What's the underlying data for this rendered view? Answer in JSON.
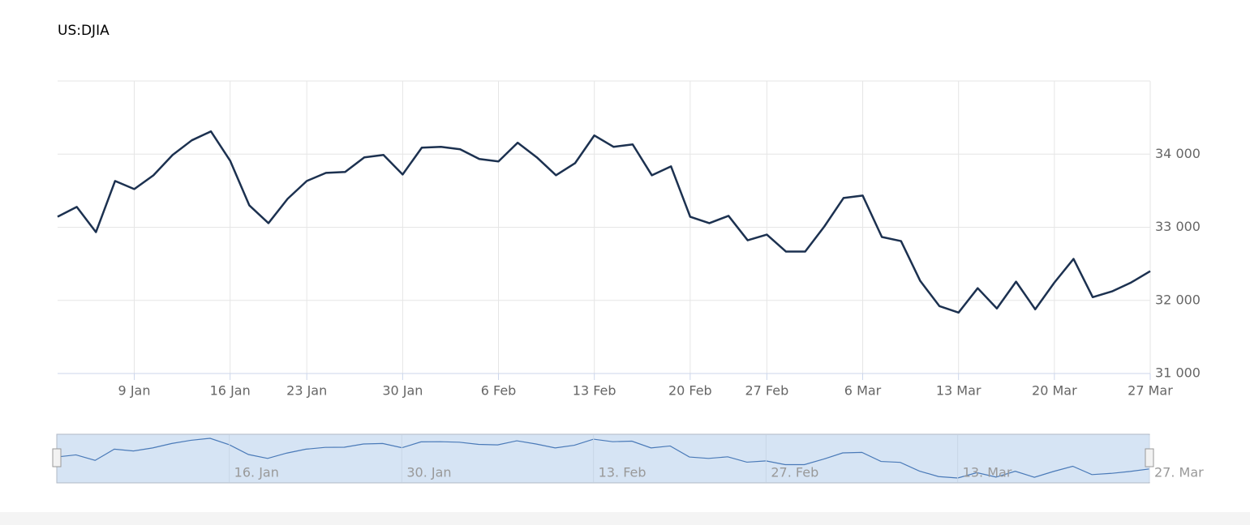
{
  "chart_data": {
    "type": "line",
    "title": "US:DJIA",
    "categories": [
      "",
      "",
      "",
      "",
      "9 Jan",
      "",
      "",
      "",
      "",
      "16 Jan",
      "",
      "",
      "",
      "23 Jan",
      "",
      "",
      "",
      "",
      "30 Jan",
      "",
      "",
      "",
      "",
      "6 Feb",
      "",
      "",
      "",
      "",
      "13 Feb",
      "",
      "",
      "",
      "",
      "20 Feb",
      "",
      "",
      "",
      "27 Feb",
      "",
      "",
      "",
      "",
      "6 Mar",
      "",
      "",
      "",
      "",
      "13 Mar",
      "",
      "",
      "",
      "",
      "20 Mar",
      "",
      "",
      "",
      "",
      "27 Mar"
    ],
    "series": [
      {
        "name": "US:DJIA",
        "color": "#1c3150",
        "values": [
          33144,
          33278,
          32933,
          33633,
          33522,
          33711,
          33989,
          34189,
          34311,
          33911,
          33300,
          33056,
          33389,
          33633,
          33744,
          33756,
          33956,
          33989,
          33722,
          34089,
          34100,
          34067,
          33933,
          33900,
          34156,
          33956,
          33711,
          33878,
          34256,
          34100,
          34133,
          33711,
          33833,
          33144,
          33056,
          33156,
          32822,
          32900,
          32667,
          32667,
          33011,
          33400,
          33433,
          32867,
          32811,
          32267,
          31922,
          31833,
          32167,
          31889,
          32256,
          31878,
          32244,
          32567,
          32044,
          32122,
          32244,
          32400
        ]
      }
    ],
    "ylim": [
      31000,
      35000
    ],
    "yticks": [
      {
        "value": 31000,
        "label": "31 000"
      },
      {
        "value": 32000,
        "label": "32 000"
      },
      {
        "value": 33000,
        "label": "33 000"
      },
      {
        "value": 34000,
        "label": "34 000"
      }
    ],
    "grid": true,
    "navigator_labels": [
      "",
      "",
      "",
      "",
      "",
      "",
      "",
      "",
      "",
      "16. Jan",
      "",
      "",
      "",
      "",
      "",
      "",
      "",
      "",
      "30. Jan",
      "",
      "",
      "",
      "",
      "",
      "",
      "",
      "",
      "",
      "13. Feb",
      "",
      "",
      "",
      "",
      "",
      "",
      "",
      "",
      "27. Feb",
      "",
      "",
      "",
      "",
      "",
      "",
      "",
      "",
      "",
      "13. Mar",
      "",
      "",
      "",
      "",
      "",
      "",
      "",
      "",
      "",
      "27. Mar"
    ]
  }
}
